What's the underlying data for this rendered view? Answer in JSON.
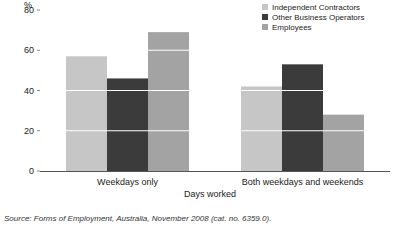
{
  "chart_data": {
    "type": "bar",
    "y_label": "%",
    "x_label": "Days worked",
    "source": "Source: Forms of Employment, Australia, November 2008 (cat. no. 6359.0).",
    "categories": [
      "Weekdays only",
      "Both weekdays and weekends"
    ],
    "series": [
      {
        "name": "Independent Contractors",
        "color": "#c6c6c6",
        "values": [
          57,
          42
        ]
      },
      {
        "name": "Other Business Operators",
        "color": "#3b3b3b",
        "values": [
          46,
          53
        ]
      },
      {
        "name": "Employees",
        "color": "#a3a3a3",
        "values": [
          69,
          28
        ]
      }
    ],
    "ylim": [
      0,
      80
    ],
    "yticks": [
      0,
      20,
      40,
      60,
      80
    ],
    "grid": true,
    "legend": "top-right"
  }
}
